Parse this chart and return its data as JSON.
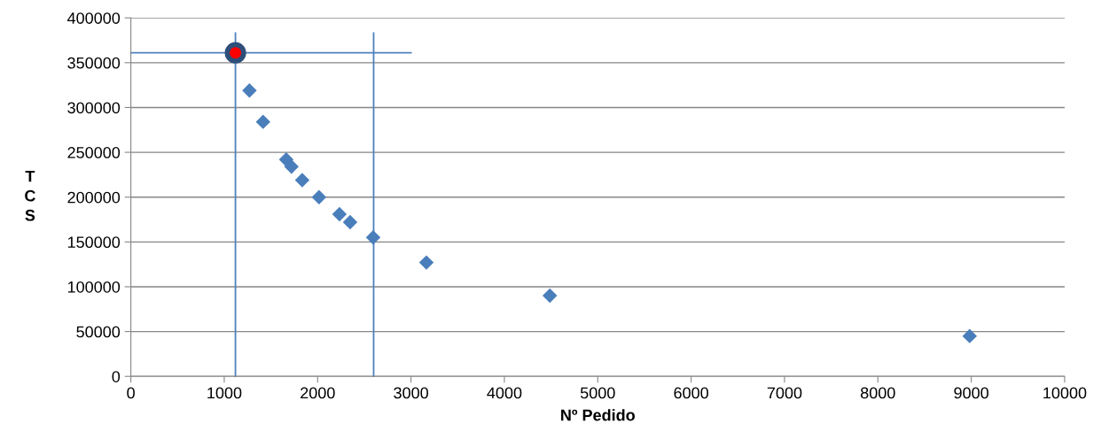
{
  "chart_data": {
    "type": "scatter",
    "xlabel": "Nº Pedido",
    "ylabel": "TCS",
    "xlim": [
      0,
      10000
    ],
    "xticks": [
      0,
      1000,
      2000,
      3000,
      4000,
      5000,
      6000,
      7000,
      8000,
      9000,
      10000
    ],
    "ylim": [
      0,
      400000
    ],
    "yticks": [
      0,
      50000,
      100000,
      150000,
      200000,
      250000,
      300000,
      350000,
      400000
    ],
    "grid": "y",
    "legend": false,
    "series": [
      {
        "marker": "diamond",
        "color": "#4a7ebb",
        "x": [
          1270,
          1416,
          1664,
          1720,
          1835,
          2015,
          2234,
          2348,
          2595,
          3165,
          4487,
          8983
        ],
        "values": [
          319000,
          284000,
          242000,
          234000,
          219000,
          200000,
          181000,
          172000,
          155000,
          127000,
          90000,
          45000
        ]
      },
      {
        "marker": "circle",
        "color": "#ff0000",
        "x": [
          1120
        ],
        "values": [
          361000
        ]
      },
      {
        "type": "line",
        "marker": "none",
        "color": "#4f81bd",
        "x": [
          1120,
          1120
        ],
        "values": [
          0,
          383000
        ]
      },
      {
        "type": "line",
        "marker": "none",
        "color": "#4f81bd",
        "x": [
          2600,
          2600
        ],
        "values": [
          0,
          383000
        ]
      },
      {
        "type": "line",
        "marker": "none",
        "color": "#4f81bd",
        "x": [
          0,
          3000
        ],
        "values": [
          361000,
          361000
        ]
      }
    ]
  }
}
